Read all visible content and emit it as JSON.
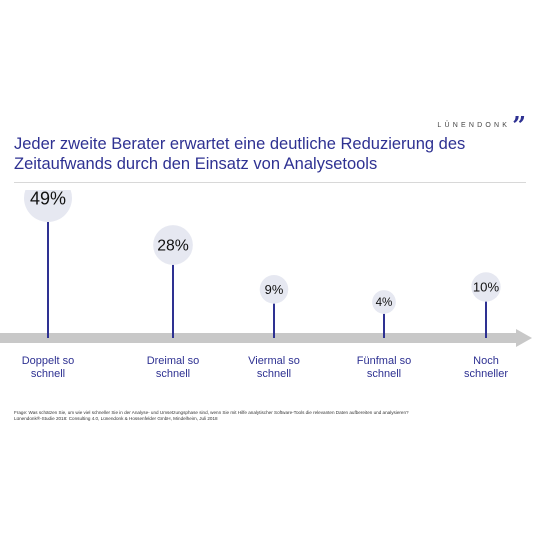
{
  "header": {
    "logo_text": "LÜNENDONK",
    "logo_mark": "”"
  },
  "title": "Jeder zweite Berater erwartet eine deutliche Reduzierung des Zeitaufwands durch den Einsatz von Analysetools",
  "chart_data": {
    "type": "lollipop",
    "title": "Jeder zweite Berater erwartet eine deutliche Reduzierung des Zeitaufwands durch den Einsatz von Analysetools",
    "categories": [
      [
        "Doppelt so",
        "schnell"
      ],
      [
        "Dreimal so",
        "schnell"
      ],
      [
        "Viermal so",
        "schnell"
      ],
      [
        "Fünfmal so",
        "schnell"
      ],
      [
        "Noch",
        "schneller"
      ]
    ],
    "values": [
      49,
      28,
      9,
      4,
      10
    ],
    "value_labels": [
      "49%",
      "28%",
      "9%",
      "4%",
      "10%"
    ],
    "unit": "%",
    "colors": {
      "stem": "#2e3192",
      "bubble": "#e6e8f1",
      "axis": "#c8c8c8",
      "label": "#2e3192",
      "value": "#111111"
    }
  },
  "footnote": {
    "question": "Frage: Was schätzen Sie, um wie viel schneller Sie in der Analyse- und Umsetzungsphase sind, wenn Sie mit Hilfe analytischer Software-Tools die relevanten Daten aufbereiten und analysieren?",
    "source": "Lünendonk®-Studie 2018: Consulting 4.0, Lünendonk & Hossenfelder GmbH, Mindelheim, Juli 2018"
  }
}
